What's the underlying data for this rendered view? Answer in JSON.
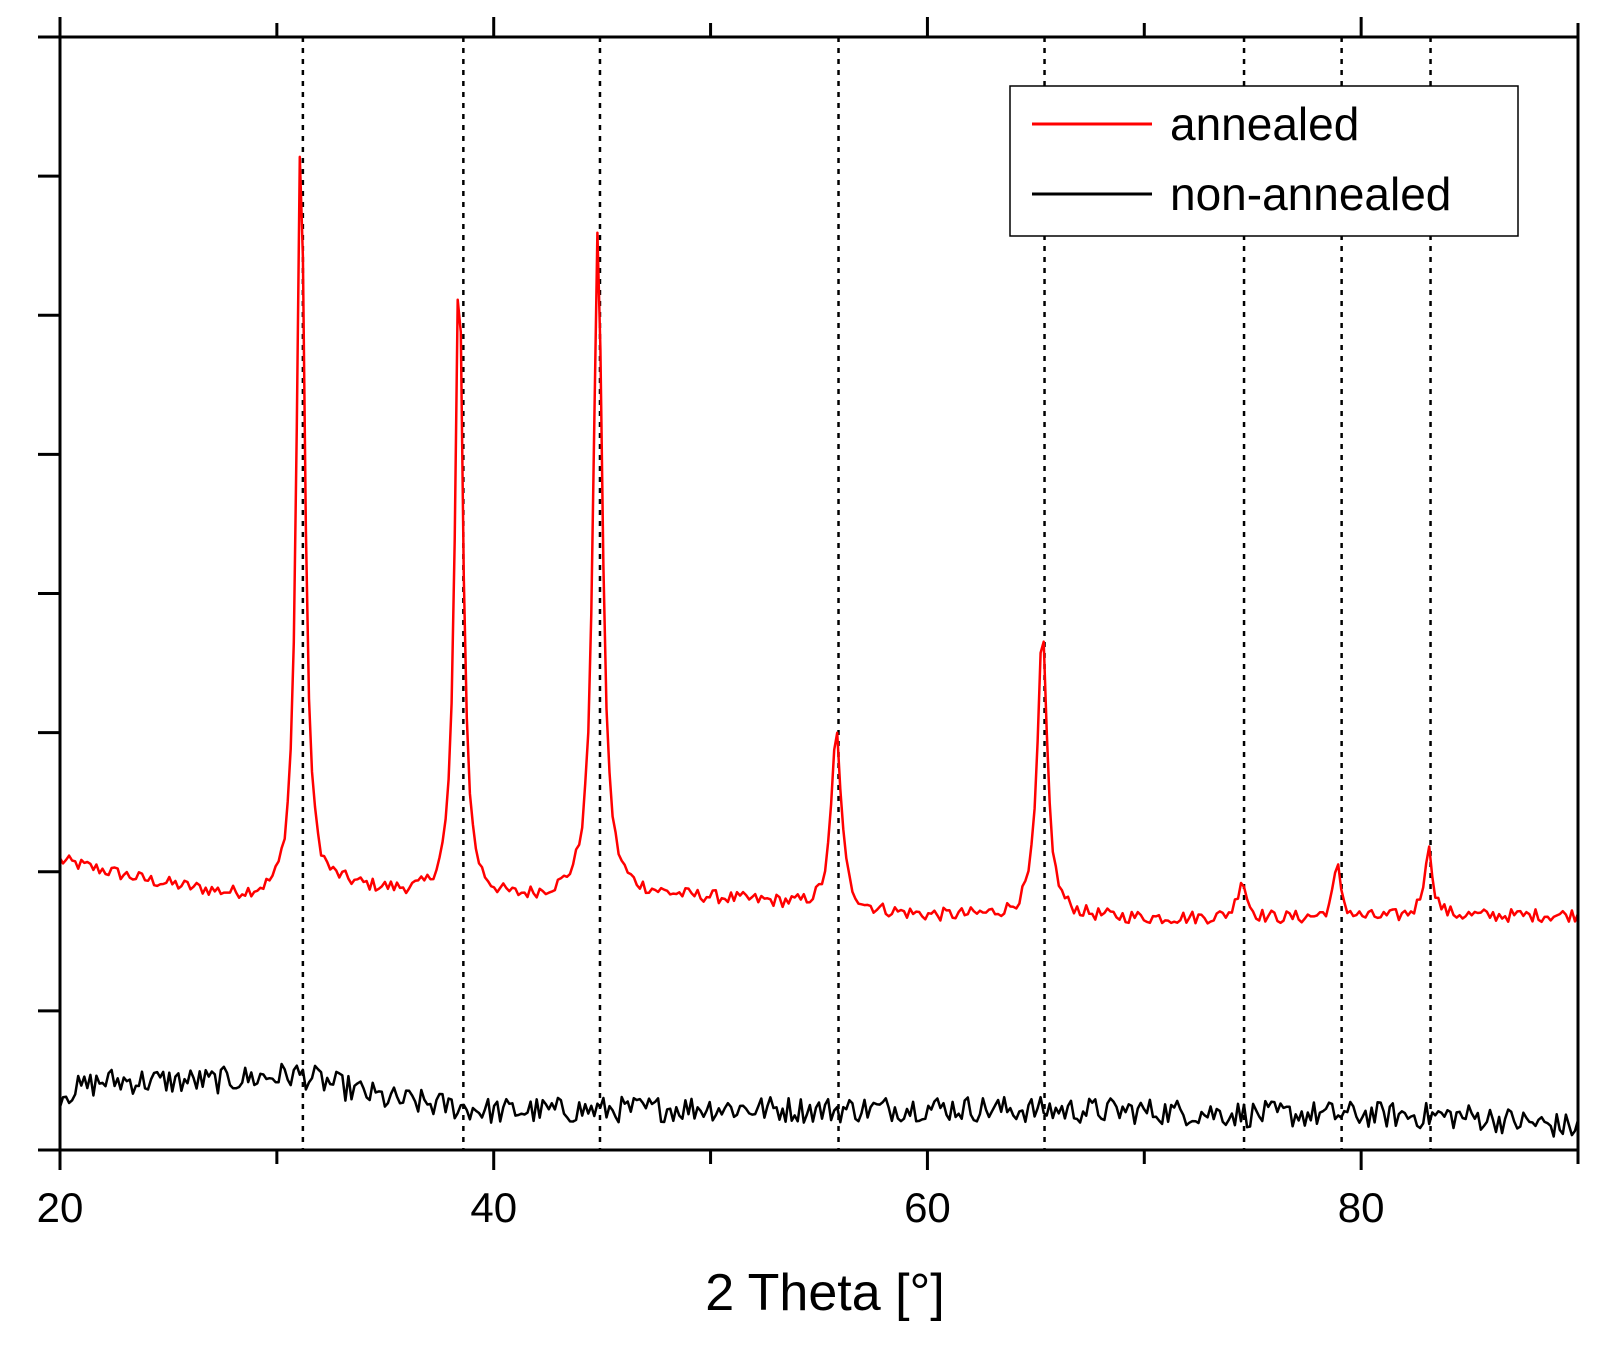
{
  "chart_data": {
    "type": "line",
    "title": "",
    "xlabel": "2 Theta [°]",
    "ylabel": "",
    "xlim": [
      20,
      90
    ],
    "ylim": [
      0,
      1
    ],
    "x_tick_values": [
      20,
      30,
      40,
      50,
      60,
      70,
      80,
      90
    ],
    "x_tick_labels": [
      {
        "value": 20,
        "label": "20"
      },
      {
        "value": 40,
        "label": "40"
      },
      {
        "value": 60,
        "label": "60"
      },
      {
        "value": 80,
        "label": "80"
      }
    ],
    "y_tick_values": [
      0.0,
      0.125,
      0.25,
      0.375,
      0.5,
      0.625,
      0.75,
      0.875,
      1.0
    ],
    "y_tick_labels_shown": false,
    "grid": false,
    "legend_position": "top-right",
    "reference_lines": {
      "style": "dotted",
      "color": "#000000",
      "x": [
        31.2,
        38.6,
        44.9,
        55.9,
        65.4,
        74.6,
        79.1,
        83.2
      ]
    },
    "series": [
      {
        "name": "annealed",
        "color": "#ff0000",
        "baseline": [
          [
            20,
            0.26
          ],
          [
            24,
            0.242
          ],
          [
            28,
            0.228
          ],
          [
            30,
            0.225
          ],
          [
            33,
            0.236
          ],
          [
            37,
            0.228
          ],
          [
            41,
            0.224
          ],
          [
            45,
            0.23
          ],
          [
            50,
            0.226
          ],
          [
            53,
            0.222
          ],
          [
            56,
            0.216
          ],
          [
            60,
            0.21
          ],
          [
            65,
            0.21
          ],
          [
            70,
            0.208
          ],
          [
            75,
            0.208
          ],
          [
            80,
            0.208
          ],
          [
            85,
            0.21
          ],
          [
            90,
            0.211
          ]
        ],
        "noise_amplitude": 0.006,
        "peaks": [
          {
            "x": 31.1,
            "height": 0.915,
            "fwhm": 0.45
          },
          {
            "x": 38.4,
            "height": 0.795,
            "fwhm": 0.45
          },
          {
            "x": 44.8,
            "height": 0.83,
            "fwhm": 0.5
          },
          {
            "x": 55.8,
            "height": 0.375,
            "fwhm": 0.55
          },
          {
            "x": 65.3,
            "height": 0.462,
            "fwhm": 0.55
          },
          {
            "x": 74.5,
            "height": 0.243,
            "fwhm": 0.5
          },
          {
            "x": 78.9,
            "height": 0.253,
            "fwhm": 0.45
          },
          {
            "x": 83.1,
            "height": 0.27,
            "fwhm": 0.5
          }
        ]
      },
      {
        "name": "non-annealed",
        "color": "#000000",
        "baseline": [
          [
            20,
            0.05
          ],
          [
            22,
            0.062
          ],
          [
            27,
            0.062
          ],
          [
            31,
            0.068
          ],
          [
            35,
            0.046
          ],
          [
            40,
            0.035
          ],
          [
            45,
            0.036
          ],
          [
            50,
            0.038
          ],
          [
            55,
            0.036
          ],
          [
            60,
            0.038
          ],
          [
            65,
            0.036
          ],
          [
            70,
            0.035
          ],
          [
            75,
            0.032
          ],
          [
            80,
            0.032
          ],
          [
            85,
            0.03
          ],
          [
            90,
            0.02
          ]
        ],
        "noise_amplitude": 0.012
      }
    ]
  }
}
